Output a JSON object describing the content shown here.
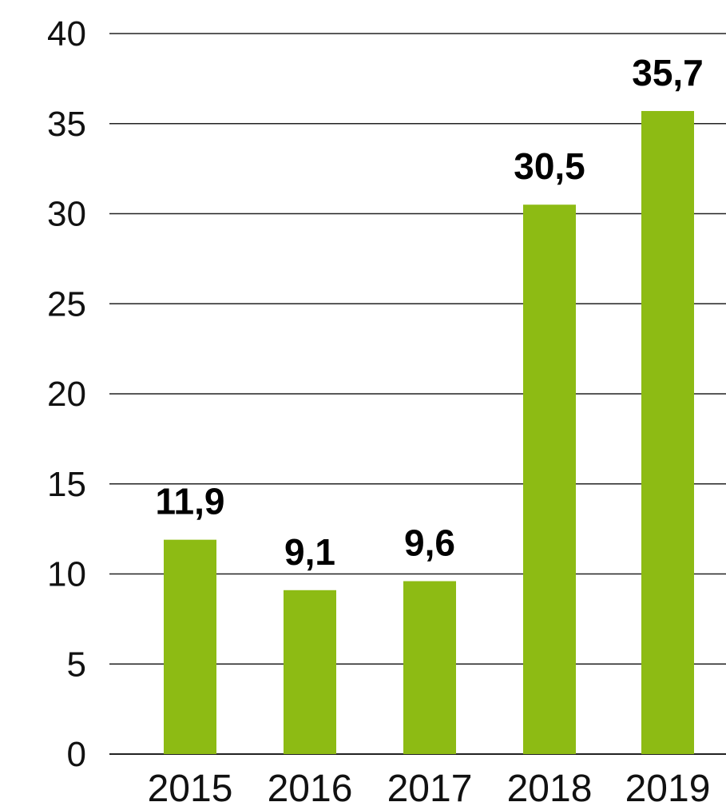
{
  "chart_data": {
    "type": "bar",
    "categories": [
      "2015",
      "2016",
      "2017",
      "2018",
      "2019"
    ],
    "values": [
      11.9,
      9.1,
      9.6,
      30.5,
      35.7
    ],
    "value_labels": [
      "11,9",
      "9,1",
      "9,6",
      "30,5",
      "35,7"
    ],
    "y_ticks": [
      "0",
      "5",
      "10",
      "15",
      "20",
      "25",
      "30",
      "35",
      "40"
    ],
    "ylim": [
      0,
      40
    ],
    "grid": true,
    "title": "",
    "xlabel": "",
    "ylabel": "",
    "colors": {
      "bar": "#8dbb14",
      "grid": "#222222",
      "text": "#111111"
    }
  }
}
